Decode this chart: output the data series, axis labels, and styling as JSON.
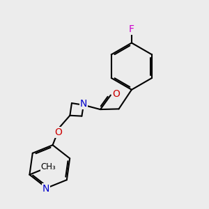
{
  "bg_color": "#ececec",
  "bond_color": "#000000",
  "bond_lw": 1.5,
  "colors": {
    "N": "#0000cc",
    "O": "#cc0000",
    "F": "#cc00cc",
    "C": "#000000"
  },
  "font_size": 10,
  "font_size_me": 8.5
}
